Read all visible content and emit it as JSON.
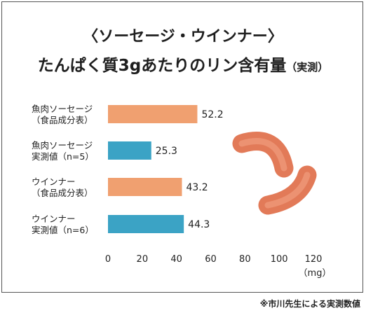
{
  "title_line1": "〈ソーセージ・ウインナー〉",
  "title_line2_main": "たんぱく質3gあたりのリン含有量",
  "title_line2_suffix": "（実測）",
  "footnote": "※市川先生による実測数値",
  "colors": {
    "orange": "#F0A070",
    "blue": "#3BA3C5",
    "sausage": "#EC8060"
  },
  "chart_data": {
    "type": "bar",
    "orientation": "horizontal",
    "title": "たんぱく質3gあたりのリン含有量（実測）",
    "categories": [
      [
        "魚肉ソーセージ",
        "（食品成分表）"
      ],
      [
        "魚肉ソーセージ",
        "実測値（n=5）"
      ],
      [
        "ウインナー",
        "（食品成分表）"
      ],
      [
        "ウインナー",
        "実測値（n=6）"
      ]
    ],
    "values": [
      52.2,
      25.3,
      43.2,
      44.3
    ],
    "value_labels": [
      "52.2",
      "25.3",
      "43.2",
      "44.3"
    ],
    "bar_colors": [
      "#F0A070",
      "#3BA3C5",
      "#F0A070",
      "#3BA3C5"
    ],
    "xlim": [
      0,
      120
    ],
    "xticks": [
      0,
      20,
      40,
      60,
      80,
      100,
      120
    ],
    "xunit": "（mg）",
    "grid": false
  }
}
